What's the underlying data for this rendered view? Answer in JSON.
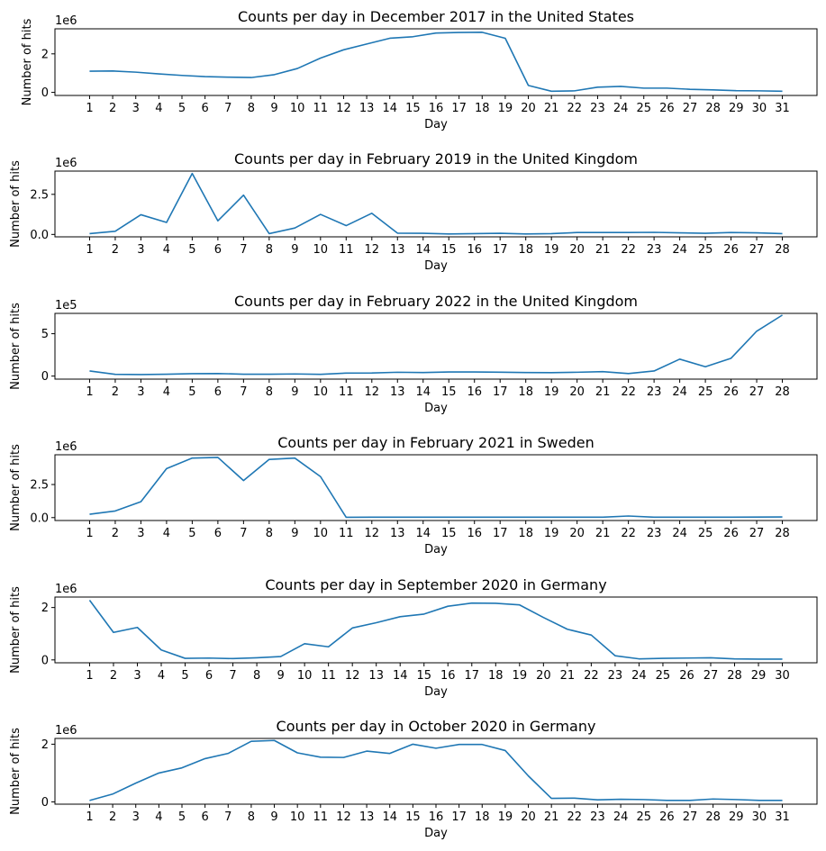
{
  "chart_data": [
    {
      "type": "line",
      "title": "Counts per day in December 2017 in the United States",
      "xlabel": "Day",
      "ylabel": "Number of hits",
      "y_offset_label": "1e6",
      "y_scale": 1000000,
      "ylim": [
        -0.16,
        3.3
      ],
      "yticks": [
        0,
        2
      ],
      "ytick_labels": [
        "0",
        "2"
      ],
      "x": [
        1,
        2,
        3,
        4,
        5,
        6,
        7,
        8,
        9,
        10,
        11,
        12,
        13,
        14,
        15,
        16,
        17,
        18,
        19,
        20,
        21,
        22,
        23,
        24,
        25,
        26,
        27,
        28,
        29,
        30,
        31
      ],
      "y": [
        1.1,
        1.11,
        1.05,
        0.96,
        0.88,
        0.82,
        0.79,
        0.77,
        0.92,
        1.24,
        1.78,
        2.21,
        2.51,
        2.81,
        2.89,
        3.08,
        3.11,
        3.12,
        2.81,
        0.36,
        0.06,
        0.08,
        0.27,
        0.31,
        0.22,
        0.22,
        0.16,
        0.13,
        0.09,
        0.08,
        0.06
      ],
      "line_color": "#1f77b4"
    },
    {
      "type": "line",
      "title": "Counts per day in February 2019 in the United Kingdom",
      "xlabel": "Day",
      "ylabel": "Number of hits",
      "y_offset_label": "1e6",
      "y_scale": 1000000,
      "ylim": [
        -0.15,
        3.95
      ],
      "yticks": [
        0,
        2.5
      ],
      "ytick_labels": [
        "0.0",
        "2.5"
      ],
      "x": [
        1,
        2,
        3,
        4,
        5,
        6,
        7,
        8,
        9,
        10,
        11,
        12,
        13,
        14,
        15,
        16,
        17,
        18,
        19,
        20,
        21,
        22,
        23,
        24,
        25,
        26,
        27,
        28
      ],
      "y": [
        0.05,
        0.2,
        1.23,
        0.75,
        3.8,
        0.85,
        2.45,
        0.05,
        0.4,
        1.25,
        0.55,
        1.32,
        0.08,
        0.07,
        0.03,
        0.05,
        0.07,
        0.03,
        0.05,
        0.12,
        0.12,
        0.12,
        0.13,
        0.1,
        0.07,
        0.12,
        0.1,
        0.05
      ],
      "line_color": "#1f77b4"
    },
    {
      "type": "line",
      "title": "Counts per day in February 2022 in the United Kingdom",
      "xlabel": "Day",
      "ylabel": "Number of hits",
      "y_offset_label": "1e5",
      "y_scale": 100000,
      "ylim": [
        -0.36,
        7.4
      ],
      "yticks": [
        0,
        5
      ],
      "ytick_labels": [
        "0",
        "5"
      ],
      "x": [
        1,
        2,
        3,
        4,
        5,
        6,
        7,
        8,
        9,
        10,
        11,
        12,
        13,
        14,
        15,
        16,
        17,
        18,
        19,
        20,
        21,
        22,
        23,
        24,
        25,
        26,
        27,
        28
      ],
      "y": [
        0.6,
        0.2,
        0.18,
        0.22,
        0.28,
        0.3,
        0.22,
        0.22,
        0.25,
        0.2,
        0.35,
        0.36,
        0.45,
        0.42,
        0.48,
        0.48,
        0.46,
        0.42,
        0.4,
        0.45,
        0.52,
        0.3,
        0.6,
        2.0,
        1.1,
        2.1,
        5.3,
        7.2
      ],
      "line_color": "#1f77b4"
    },
    {
      "type": "line",
      "title": "Counts per day in February 2021 in Sweden",
      "xlabel": "Day",
      "ylabel": "Number of hits",
      "y_offset_label": "1e6",
      "y_scale": 1000000,
      "ylim": [
        -0.22,
        4.75
      ],
      "yticks": [
        0,
        2.5
      ],
      "ytick_labels": [
        "0.0",
        "2.5"
      ],
      "x": [
        1,
        2,
        3,
        4,
        5,
        6,
        7,
        8,
        9,
        10,
        11,
        12,
        13,
        14,
        15,
        16,
        17,
        18,
        19,
        20,
        21,
        22,
        23,
        24,
        25,
        26,
        27,
        28
      ],
      "y": [
        0.25,
        0.5,
        1.2,
        3.7,
        4.5,
        4.55,
        2.8,
        4.4,
        4.5,
        3.1,
        0.02,
        0.03,
        0.03,
        0.03,
        0.03,
        0.03,
        0.03,
        0.03,
        0.03,
        0.03,
        0.03,
        0.12,
        0.03,
        0.03,
        0.03,
        0.03,
        0.04,
        0.05
      ],
      "line_color": "#1f77b4"
    },
    {
      "type": "line",
      "title": "Counts per day in September 2020 in Germany",
      "xlabel": "Day",
      "ylabel": "Number of hits",
      "y_offset_label": "1e6",
      "y_scale": 1000000,
      "ylim": [
        -0.11,
        2.4
      ],
      "yticks": [
        0,
        2
      ],
      "ytick_labels": [
        "0",
        "2"
      ],
      "x": [
        1,
        2,
        3,
        4,
        5,
        6,
        7,
        8,
        9,
        10,
        11,
        12,
        13,
        14,
        15,
        16,
        17,
        18,
        19,
        20,
        21,
        22,
        23,
        24,
        25,
        26,
        27,
        28,
        29,
        30
      ],
      "y": [
        2.28,
        1.05,
        1.24,
        0.38,
        0.06,
        0.07,
        0.05,
        0.08,
        0.13,
        0.62,
        0.5,
        1.22,
        1.42,
        1.65,
        1.75,
        2.05,
        2.17,
        2.16,
        2.1,
        1.62,
        1.17,
        0.95,
        0.16,
        0.04,
        0.06,
        0.07,
        0.08,
        0.04,
        0.03,
        0.03
      ],
      "line_color": "#1f77b4"
    },
    {
      "type": "line",
      "title": "Counts per day in October 2020 in Germany",
      "xlabel": "Day",
      "ylabel": "Number of hits",
      "y_offset_label": "1e6",
      "y_scale": 1000000,
      "ylim": [
        -0.08,
        2.2
      ],
      "yticks": [
        0,
        2
      ],
      "ytick_labels": [
        "0",
        "2"
      ],
      "x": [
        1,
        2,
        3,
        4,
        5,
        6,
        7,
        8,
        9,
        10,
        11,
        12,
        13,
        14,
        15,
        16,
        17,
        18,
        19,
        20,
        21,
        22,
        23,
        24,
        25,
        26,
        27,
        28,
        29,
        30,
        31
      ],
      "y": [
        0.05,
        0.27,
        0.65,
        1.0,
        1.18,
        1.5,
        1.68,
        2.1,
        2.13,
        1.7,
        1.55,
        1.54,
        1.76,
        1.68,
        2.0,
        1.86,
        1.99,
        1.99,
        1.78,
        0.9,
        0.12,
        0.13,
        0.07,
        0.09,
        0.08,
        0.05,
        0.05,
        0.1,
        0.08,
        0.05,
        0.05
      ],
      "line_color": "#1f77b4"
    }
  ]
}
